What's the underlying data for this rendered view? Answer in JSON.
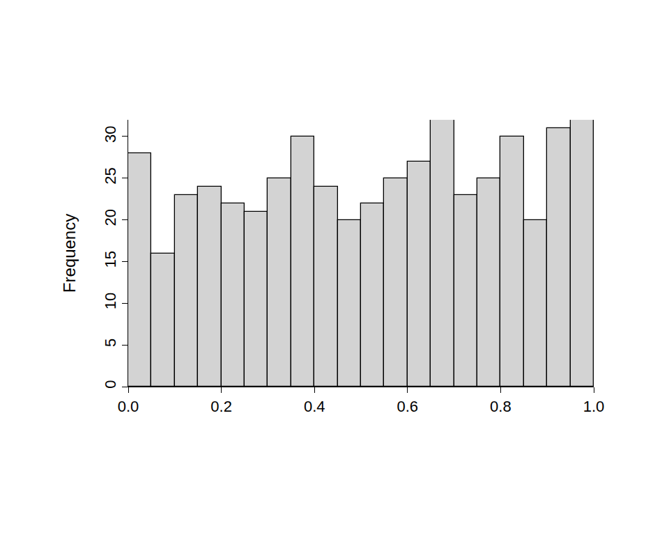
{
  "chart_data": {
    "type": "histogram",
    "y_label": "Frequency",
    "bins": [
      0,
      0.05,
      0.1,
      0.15,
      0.2,
      0.25,
      0.3,
      0.35,
      0.4,
      0.45,
      0.5,
      0.55,
      0.6,
      0.65,
      0.7,
      0.75,
      0.8,
      0.85,
      0.9,
      0.95,
      1
    ],
    "values": [
      28,
      16,
      23,
      24,
      22,
      21,
      25,
      30,
      24,
      20,
      22,
      25,
      27,
      32,
      23,
      25,
      30,
      20,
      31,
      32
    ],
    "color": "#d3d3d3",
    "xlim": [
      0,
      1
    ],
    "xticks": [
      {
        "value": 0,
        "label": "0.0"
      },
      0.2,
      0.4,
      0.6,
      0.8,
      {
        "value": 1,
        "label": "1.0"
      }
    ],
    "ylim": [
      0,
      32
    ],
    "yticks": [
      0,
      5,
      10,
      15,
      20,
      25,
      30
    ],
    "grid": false
  }
}
